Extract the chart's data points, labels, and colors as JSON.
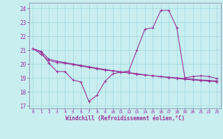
{
  "xlabel": "Windchill (Refroidissement éolien,°C)",
  "xlim": [
    -0.5,
    23.5
  ],
  "ylim": [
    16.8,
    24.4
  ],
  "yticks": [
    17,
    18,
    19,
    20,
    21,
    22,
    23,
    24
  ],
  "xticks": [
    0,
    1,
    2,
    3,
    4,
    5,
    6,
    7,
    8,
    9,
    10,
    11,
    12,
    13,
    14,
    15,
    16,
    17,
    18,
    19,
    20,
    21,
    22,
    23
  ],
  "bg_color": "#c8eef0",
  "grid_color": "#a0d8e0",
  "line_color": "#993399",
  "spine_color": "#7b7b9b",
  "line1_x": [
    0,
    1,
    2,
    3,
    4,
    5,
    6,
    7,
    8,
    9,
    10,
    11,
    12,
    13,
    14,
    15,
    16,
    17,
    18,
    19,
    20,
    21,
    22,
    23
  ],
  "line1_y": [
    21.1,
    20.85,
    20.05,
    19.45,
    19.45,
    18.85,
    18.7,
    17.3,
    17.75,
    18.75,
    19.3,
    19.4,
    19.5,
    21.0,
    22.5,
    22.6,
    23.85,
    23.85,
    22.6,
    19.0,
    19.1,
    19.15,
    19.1,
    18.95
  ],
  "line2_x": [
    0,
    1,
    2,
    3,
    4,
    5,
    6,
    7,
    8,
    9,
    10,
    11,
    12,
    13,
    14,
    15,
    16,
    17,
    18,
    19,
    20,
    21,
    22,
    23
  ],
  "line2_y": [
    21.1,
    20.7,
    20.25,
    20.1,
    20.05,
    19.95,
    19.85,
    19.75,
    19.65,
    19.55,
    19.5,
    19.4,
    19.35,
    19.25,
    19.2,
    19.15,
    19.1,
    19.05,
    19.0,
    18.95,
    18.9,
    18.85,
    18.82,
    18.78
  ],
  "line3_x": [
    0,
    1,
    2,
    3,
    4,
    5,
    6,
    7,
    8,
    9,
    10,
    11,
    12,
    13,
    14,
    15,
    16,
    17,
    18,
    19,
    20,
    21,
    22,
    23
  ],
  "line3_y": [
    21.1,
    20.9,
    20.35,
    20.2,
    20.1,
    20.0,
    19.9,
    19.8,
    19.7,
    19.6,
    19.52,
    19.44,
    19.38,
    19.3,
    19.22,
    19.15,
    19.08,
    19.02,
    18.96,
    18.9,
    18.85,
    18.8,
    18.76,
    18.72
  ]
}
